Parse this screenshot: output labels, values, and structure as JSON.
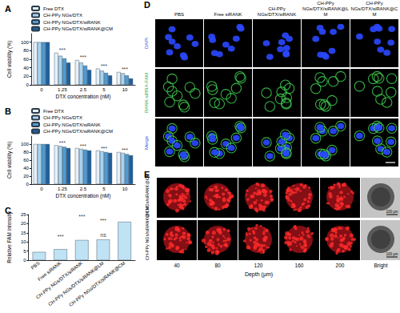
{
  "chart_data": [
    {
      "panel": "A",
      "type": "bar",
      "x_label": "DTX concentration (nM)",
      "y_label": "Cell viability (%)",
      "categories": [
        0,
        1.25,
        2.5,
        5,
        10
      ],
      "series": [
        {
          "name": "Free DTX",
          "color": "#e4f1fb",
          "values": [
            100,
            75,
            58,
            38,
            30
          ]
        },
        {
          "name": "CH-PPy NGs/DTX",
          "color": "#a9d3ee",
          "values": [
            100,
            68,
            52,
            33,
            27
          ]
        },
        {
          "name": "CH-PPy NGs/DTX/siRANK",
          "color": "#4f9bd1",
          "values": [
            100,
            62,
            45,
            28,
            22
          ]
        },
        {
          "name": "CH-PPy NGs/DTX/siRANK@CM",
          "color": "#1e5f9e",
          "values": [
            100,
            52,
            35,
            22,
            15
          ]
        }
      ],
      "annotations": [
        {
          "x": 1.25,
          "y": 82,
          "text": "***"
        },
        {
          "x": 2.5,
          "y": 64,
          "text": "***"
        },
        {
          "x": 5,
          "y": 44,
          "text": "***"
        },
        {
          "x": 10,
          "y": 36,
          "text": "***"
        }
      ],
      "ylim": [
        0,
        120
      ],
      "yticks": [
        0,
        20,
        40,
        60,
        80,
        100
      ],
      "legend": "top left",
      "grid": false
    },
    {
      "panel": "B",
      "type": "bar",
      "x_label": "DTX concentration (nM)",
      "y_label": "Cell viability (%)",
      "categories": [
        0,
        1.25,
        2.5,
        5,
        10
      ],
      "series": [
        {
          "name": "Free DTX",
          "color": "#e4f1fb",
          "values": [
            100,
            97,
            90,
            84,
            80
          ]
        },
        {
          "name": "CH-PPy NGs/DTX",
          "color": "#a9d3ee",
          "values": [
            100,
            95,
            88,
            82,
            78
          ]
        },
        {
          "name": "CH-PPy NGs/DTX/siRANK",
          "color": "#4f9bd1",
          "values": [
            100,
            93,
            86,
            80,
            75
          ]
        },
        {
          "name": "CH-PPy NGs/DTX/siRANK@CM",
          "color": "#1e5f9e",
          "values": [
            100,
            90,
            84,
            78,
            72
          ]
        }
      ],
      "annotations": [
        {
          "x": 1.25,
          "y": 104,
          "text": "***"
        },
        {
          "x": 2.5,
          "y": 96,
          "text": "***"
        },
        {
          "x": 5,
          "y": 90,
          "text": "***"
        },
        {
          "x": 10,
          "y": 86,
          "text": "***"
        }
      ],
      "ylim": [
        0,
        120
      ],
      "yticks": [
        0,
        20,
        40,
        60,
        80,
        100
      ],
      "legend": "top left",
      "grid": false
    },
    {
      "panel": "C",
      "type": "bar",
      "y_label": "Relative FAM intensity",
      "categories": [
        "PBS",
        "Free siRANK",
        "CH-PPy NGs/DTX/siRANK",
        "CH-PPy NGs/DTX/siRANK@LM",
        "CH-PPy NGs/DTX/siRANK@CM"
      ],
      "values": [
        4.5,
        6,
        11,
        11.3,
        21
      ],
      "color": "#bfe3f5",
      "annotations": [
        {
          "x": "CH-PPy NGs/DTX/siRANK",
          "y": 24,
          "text": "***"
        },
        {
          "x": "CH-PPy NGs/DTX/siRANK@LM",
          "y": 21.5,
          "text": "***"
        },
        {
          "x": "Free siRANK",
          "y": 13,
          "text": "***"
        },
        {
          "x": "CH-PPy NGs/DTX/siRANK@LM",
          "y": 14,
          "text": "ns"
        }
      ],
      "ylim": [
        0,
        25
      ],
      "yticks": [
        0,
        5,
        10,
        15,
        20,
        25
      ],
      "grid": false
    }
  ],
  "microscopy": {
    "panel": "D",
    "columns": [
      "PBS",
      "Free siRANK",
      "CH-PPy NGs/DTX/siRANK",
      "CH-PPy NGs/DTX/siRANK@LM",
      "CH-PPy NGs/DTX/siRANK@CM"
    ],
    "rows": [
      {
        "label": "DAPI",
        "color": "#2d55e0"
      },
      {
        "label": "RANK-siRNA-FAM",
        "color": "#2ea84a"
      },
      {
        "label": "Merge",
        "color": "#2d55e0"
      }
    ]
  },
  "spheroids": {
    "panel": "E",
    "rows": [
      "CH NGs/siRANK@CM",
      "CH-PPy NGs/siRANK@CM"
    ],
    "depths": [
      40,
      80,
      120,
      160,
      200
    ],
    "depth_label": "Depth (μm)",
    "bright_label": "Bright",
    "scale_bar": "100 μm"
  }
}
